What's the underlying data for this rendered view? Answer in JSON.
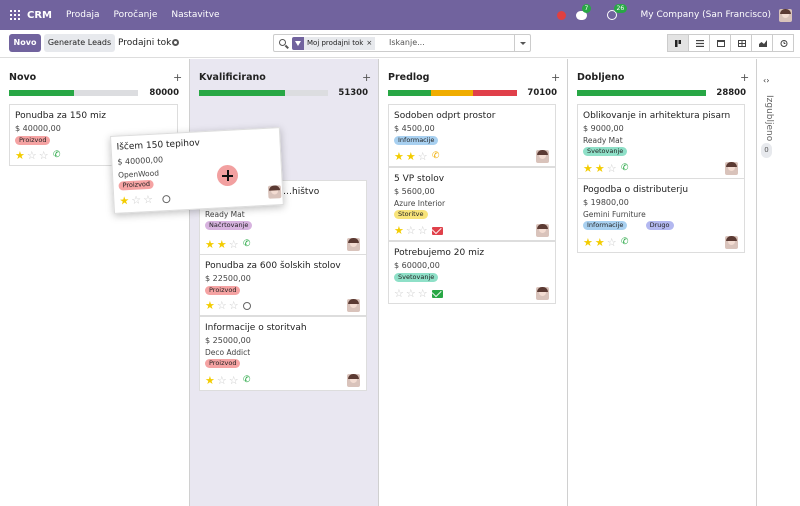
{
  "nav": {
    "brand": "CRM",
    "menu": [
      "Prodaja",
      "Poročanje",
      "Nastavitve"
    ],
    "chat_badge": "7",
    "activity_badge": "26",
    "company": "My Company (San Francisco)"
  },
  "control": {
    "new_label": "Novo",
    "generate_label": "Generate Leads",
    "breadcrumb": "Prodajni tok",
    "facet_label": "Moj prodajni tok",
    "facet_remove": "×",
    "search_placeholder": "Iskanje..."
  },
  "columns": [
    {
      "title": "Novo",
      "total": "80000",
      "progress": [
        {
          "color": "#28a745",
          "share": 0.5
        }
      ],
      "cards": [
        {
          "title": "Ponudba za 150 miz",
          "amount": "$ 40000,00",
          "customer": "",
          "tags": [
            {
              "label": "Proizvod",
              "color": "#f5a3a3"
            }
          ],
          "stars": 1,
          "activity": "phone",
          "activity_color": "#28a745",
          "avatar": false
        }
      ]
    },
    {
      "title": "Kvalificirano",
      "total": "51300",
      "progress": [
        {
          "color": "#28a745",
          "share": 0.67
        }
      ],
      "cards": [
        {
          "title": "…hištvo",
          "amount": "",
          "customer": "Ready Mat",
          "tags": [
            {
              "label": "Načrtovanje",
              "color": "#d7b3df"
            }
          ],
          "stars": 2,
          "activity": "phone",
          "activity_color": "#28a745",
          "avatar": true
        },
        {
          "title": "Ponudba za 600 šolskih stolov",
          "amount": "$ 22500,00",
          "customer": "",
          "tags": [
            {
              "label": "Proizvod",
              "color": "#f5a3a3"
            }
          ],
          "stars": 1,
          "activity": "clock",
          "activity_color": "#666666",
          "avatar": true
        },
        {
          "title": "Informacije o storitvah",
          "amount": "$ 25000,00",
          "customer": "Deco Addict",
          "tags": [
            {
              "label": "Proizvod",
              "color": "#f5a3a3"
            }
          ],
          "stars": 1,
          "activity": "phone",
          "activity_color": "#28a745",
          "avatar": true
        }
      ]
    },
    {
      "title": "Predlog",
      "total": "70100",
      "progress": [
        {
          "color": "#28a745",
          "share": 0.33
        },
        {
          "color": "#f0ad00",
          "share": 0.33
        },
        {
          "color": "#e0404a",
          "share": 0.34
        }
      ],
      "cards": [
        {
          "title": "Sodoben odprt prostor",
          "amount": "$ 4500,00",
          "customer": "",
          "tags": [
            {
              "label": "Informacije",
              "color": "#a8d0f0"
            }
          ],
          "stars": 2,
          "activity": "phone",
          "activity_color": "#f0ad00",
          "avatar": true
        },
        {
          "title": "5 VP stolov",
          "amount": "$ 5600,00",
          "customer": "Azure Interior",
          "tags": [
            {
              "label": "Storitve",
              "color": "#f8e47a"
            }
          ],
          "stars": 1,
          "activity": "mail",
          "activity_color": "#e0404a",
          "avatar": true
        },
        {
          "title": "Potrebujemo 20 miz",
          "amount": "$ 60000,00",
          "customer": "",
          "tags": [
            {
              "label": "Svetovanje",
              "color": "#8fe0c8"
            }
          ],
          "stars": 0,
          "activity": "mail",
          "activity_color": "#28a745",
          "avatar": true
        }
      ]
    },
    {
      "title": "Dobljeno",
      "total": "28800",
      "progress": [
        {
          "color": "#28a745",
          "share": 1.0
        }
      ],
      "cards": [
        {
          "title": "Oblikovanje in arhitektura pisarn",
          "amount": "$ 9000,00",
          "customer": "Ready Mat",
          "tags": [
            {
              "label": "Svetovanje",
              "color": "#8fe0c8"
            }
          ],
          "stars": 2,
          "activity": "phone",
          "activity_color": "#28a745",
          "avatar": true
        },
        {
          "title": "Pogodba o distributerju",
          "amount": "$ 19800,00",
          "customer": "Gemini Furniture",
          "tags": [
            {
              "label": "Informacije",
              "color": "#a8d0f0"
            },
            {
              "label": "Drugo",
              "color": "#b3b8f0"
            }
          ],
          "stars": 2,
          "activity": "phone",
          "activity_color": "#28a745",
          "avatar": true
        }
      ]
    }
  ],
  "folded": {
    "label": "Izgubljeno",
    "count": "0"
  },
  "dragging": {
    "title": "Iščem 150 tepihov",
    "amount": "$ 40000,00",
    "customer": "OpenWood",
    "tags": [
      {
        "label": "Proizvod",
        "color": "#f5a3a3"
      }
    ],
    "stars": 1,
    "activity": "clock"
  }
}
